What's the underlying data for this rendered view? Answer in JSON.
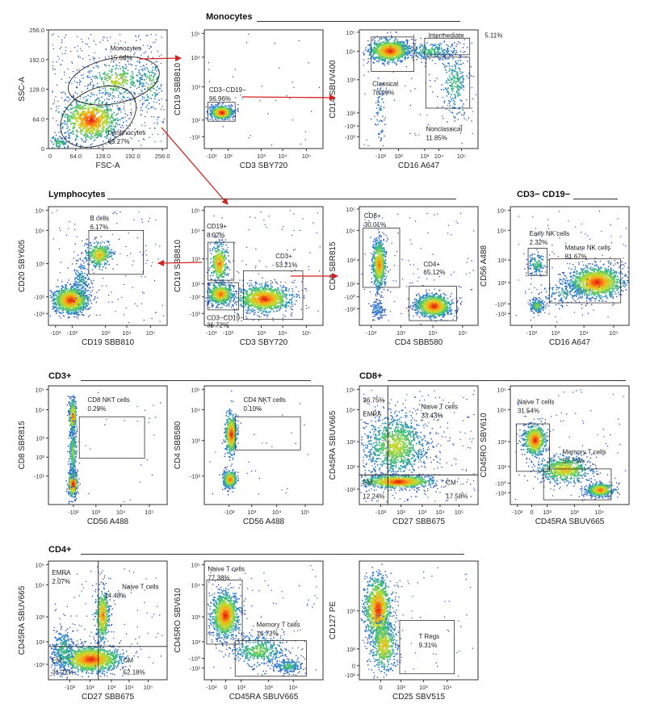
{
  "sections": [
    {
      "id": "monocytes",
      "title": "Monocytes"
    },
    {
      "id": "lymphocytes",
      "title": "Lymphocytes"
    },
    {
      "id": "nk",
      "title": "CD3− CD19−"
    },
    {
      "id": "cd3",
      "title": "CD3+"
    },
    {
      "id": "cd8",
      "title": "CD8+"
    },
    {
      "id": "cd4",
      "title": "CD4+"
    }
  ],
  "chart_data": [
    {
      "id": "p1",
      "type": "scatter",
      "xlabel": "FSC-A",
      "ylabel": "SSC-A",
      "xticks": [
        "64.0",
        "128.0",
        "192.0",
        "256.0"
      ],
      "yticks": [
        "256.0",
        "192.0",
        "128.0",
        "64.0",
        "0"
      ],
      "xtick0": "0",
      "xlim": [
        0,
        256
      ],
      "ylim": [
        0,
        256
      ],
      "gates": [
        {
          "name": "Monocytes",
          "pct": "15.66%"
        },
        {
          "name": "Lymphocytes",
          "pct": "69.27%"
        }
      ]
    },
    {
      "id": "p2",
      "type": "scatter",
      "xlabel": "CD3 SBY720",
      "ylabel": "CD19 SBB810",
      "xticks": [
        "-10²",
        "10²",
        "10³",
        "10⁴",
        "10⁵"
      ],
      "yticks": [
        "10⁵",
        "10⁴",
        "10³",
        "10²",
        "-10²"
      ],
      "gates": [
        {
          "name": "CD3−CD19−",
          "pct": "96.96%"
        }
      ]
    },
    {
      "id": "p3",
      "type": "scatter",
      "xlabel": "CD16 A647",
      "ylabel": "CD14 SBUV400",
      "xticks": [
        "-10²",
        "10²",
        "10³",
        "10⁴",
        "10⁵"
      ],
      "yticks": [
        "10⁵",
        "10⁴",
        "10³",
        "10²",
        "-10²",
        "-10³"
      ],
      "gates": [
        {
          "name": "Intermediate",
          "pct": "5.11%"
        },
        {
          "name": "Classical",
          "pct": "78.09%"
        },
        {
          "name": "Nonclassical",
          "pct": "11.85%"
        }
      ]
    },
    {
      "id": "p4",
      "type": "scatter",
      "xlabel": "CD19 SBB810",
      "ylabel": "CD20 SBY605",
      "xticks": [
        "-10³",
        "-10²",
        "10³",
        "10⁴",
        "10⁵"
      ],
      "yticks": [
        "10⁵",
        "10⁴",
        "10³",
        "-10²",
        "-10³"
      ],
      "gates": [
        {
          "name": "B cells",
          "pct": "6.17%"
        }
      ]
    },
    {
      "id": "p5",
      "type": "scatter",
      "xlabel": "CD3 SBY720",
      "ylabel": "CD19 SBB810",
      "xticks": [
        "-10³",
        "-10²",
        "10³",
        "10⁴",
        "10⁵"
      ],
      "yticks": [
        "10⁵",
        "10⁴",
        "10³",
        "10²",
        "-10²",
        "-10³"
      ],
      "gates": [
        {
          "name": "CD19+",
          "pct": "8.02%"
        },
        {
          "name": "CD3+",
          "pct": "53.21%"
        },
        {
          "name": "CD3−CD19−",
          "pct": "36.72%"
        }
      ]
    },
    {
      "id": "p6",
      "type": "scatter",
      "xlabel": "CD4 SBB580",
      "ylabel": "CD8 SBR815",
      "xticks": [
        "-10²",
        "10³",
        "10⁴",
        "10⁵"
      ],
      "yticks": [
        "10⁵",
        "10⁴",
        "10³",
        "10²",
        "-10⁰",
        "-10²"
      ],
      "gates": [
        {
          "name": "CD8+",
          "pct": "30.01%"
        },
        {
          "name": "CD4+",
          "pct": "65.12%"
        }
      ]
    },
    {
      "id": "p7",
      "type": "scatter",
      "xlabel": "CD16 A647",
      "ylabel": "CD56 A488",
      "xticks": [
        "-10²",
        "10³",
        "10⁴",
        "10⁵"
      ],
      "yticks": [
        "10⁵",
        "10⁴",
        "10³",
        "10²",
        "-10⁰",
        "-10²"
      ],
      "gates": [
        {
          "name": "Early NK cells",
          "pct": "2.32%"
        },
        {
          "name": "Mature NK cells",
          "pct": "81.67%"
        }
      ]
    },
    {
      "id": "p8",
      "type": "scatter",
      "xlabel": "CD56 A488",
      "ylabel": "CD8 SBR815",
      "xticks": [
        "-10²",
        "10³",
        "10⁴",
        "10⁵"
      ],
      "yticks": [
        "10⁵",
        "10⁴",
        "10³",
        "10²",
        "-10¹"
      ],
      "gates": [
        {
          "name": "CD8 NKT cells",
          "pct": "0.29%"
        }
      ]
    },
    {
      "id": "p9",
      "type": "scatter",
      "xlabel": "CD56 A488",
      "ylabel": "CD4 SBB580",
      "xticks": [
        "-10²",
        "10³",
        "10⁴",
        "10⁵"
      ],
      "yticks": [
        "10⁵",
        "10⁴",
        "10³",
        "-10²"
      ],
      "gates": [
        {
          "name": "CD4 NKT cells",
          "pct": "0.10%"
        }
      ]
    },
    {
      "id": "p10",
      "type": "scatter",
      "xlabel": "CD27 SBB675",
      "ylabel": "CD45RA SBUV665",
      "xticks": [
        "-10²",
        "10²",
        "10³",
        "10⁴",
        "10⁵"
      ],
      "yticks": [
        "10⁵",
        "10⁴",
        "10³",
        "10²",
        "-10²"
      ],
      "gates": [
        {
          "name": "EMRA",
          "pct": "36.75%"
        },
        {
          "name": "Naive T cells",
          "pct": "33.43%"
        },
        {
          "name": "EM",
          "pct": "12.24%"
        },
        {
          "name": "CM",
          "pct": "17.58%"
        }
      ]
    },
    {
      "id": "p11",
      "type": "scatter",
      "xlabel": "CD45RA SBUV665",
      "ylabel": "CD45RO SBV610",
      "xticks": [
        "-10²",
        "0",
        "10²",
        "10³",
        "10⁴"
      ],
      "yticks": [
        "10⁵",
        "10⁴",
        "10³",
        "10²",
        "-10⁰",
        "-10²"
      ],
      "gates": [
        {
          "name": "Naive T cells",
          "pct": "31.54%"
        },
        {
          "name": "Memory T cells",
          "pct": "57.76%"
        }
      ]
    },
    {
      "id": "p12",
      "type": "scatter",
      "xlabel": "CD27 SBB675",
      "ylabel": "CD45RA SBUV665",
      "xticks": [
        "-10²",
        "10²",
        "10³",
        "10⁴",
        "10⁵"
      ],
      "yticks": [
        "10⁵",
        "10⁴",
        "10³",
        "10²",
        "-10²"
      ],
      "gates": [
        {
          "name": "EMRA",
          "pct": "2.07%"
        },
        {
          "name": "Naive T cells",
          "pct": "14.48%"
        },
        {
          "name": "EM",
          "pct": "31.27%"
        },
        {
          "name": "CM",
          "pct": "52.18%"
        }
      ]
    },
    {
      "id": "p13",
      "type": "scatter",
      "xlabel": "CD45RA SBUV665",
      "ylabel": "CD45RO SBV610",
      "xticks": [
        "-10²",
        "0",
        "10²",
        "10³",
        "10⁴"
      ],
      "yticks": [
        "10⁵",
        "10⁴",
        "10³",
        "10²",
        "-10⁰",
        "-10²"
      ],
      "gates": [
        {
          "name": "Naive T cells",
          "pct": "77.38%"
        },
        {
          "name": "Memory T cells",
          "pct": "16.72%"
        }
      ]
    },
    {
      "id": "p14",
      "type": "scatter",
      "xlabel": "CD25 SBV515",
      "ylabel": "CD127 PE",
      "xticks": [
        "0",
        "10²",
        "10³",
        "10⁴"
      ],
      "yticks": [
        "10³",
        "10²",
        "0",
        "-10²"
      ],
      "gates": [
        {
          "name": "T Regs",
          "pct": "9.31%"
        }
      ]
    }
  ]
}
